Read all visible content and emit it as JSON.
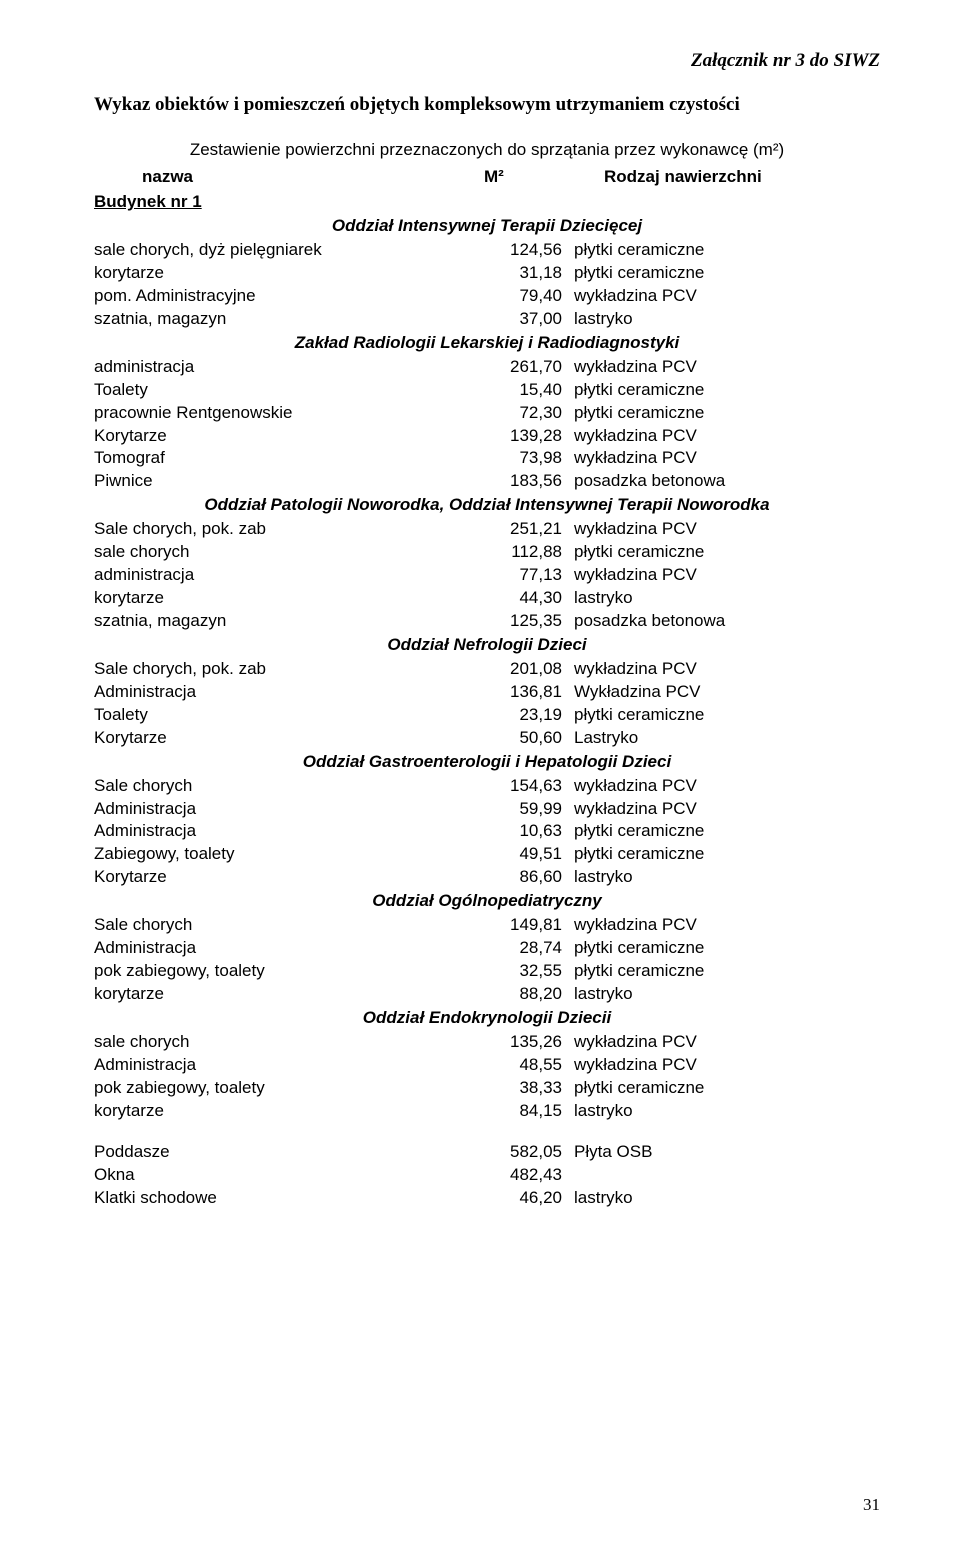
{
  "attachment_label": "Załącznik nr 3 do SIWZ",
  "doc_title": "Wykaz obiektów i pomieszczeń objętych kompleksowym utrzymaniem czystości",
  "subtitle": "Zestawienie powierzchni przeznaczonych do sprzątania przez wykonawcę (m²)",
  "headers": {
    "name": "nazwa",
    "m2": "M²",
    "surface": "Rodzaj nawierzchni"
  },
  "building_label": "Budynek nr 1",
  "sections": [
    {
      "title": "Oddział Intensywnej Terapii Dziecięcej",
      "rows": [
        {
          "name": "sale chorych, dyż pielęgniarek",
          "val": "124,56",
          "surf": "płytki ceramiczne"
        },
        {
          "name": "korytarze",
          "val": "31,18",
          "surf": "płytki ceramiczne"
        },
        {
          "name": "pom. Administracyjne",
          "val": "79,40",
          "surf": "wykładzina PCV"
        },
        {
          "name": "szatnia, magazyn",
          "val": "37,00",
          "surf": "lastryko"
        }
      ]
    },
    {
      "title": "Zakład Radiologii Lekarskiej i Radiodiagnostyki",
      "rows": [
        {
          "name": "administracja",
          "val": "261,70",
          "surf": "wykładzina PCV"
        },
        {
          "name": "Toalety",
          "val": "15,40",
          "surf": "płytki ceramiczne"
        },
        {
          "name": "pracownie Rentgenowskie",
          "val": "72,30",
          "surf": "płytki ceramiczne"
        },
        {
          "name": "Korytarze",
          "val": "139,28",
          "surf": "wykładzina PCV"
        },
        {
          "name": "Tomograf",
          "val": "73,98",
          "surf": "wykładzina PCV"
        },
        {
          "name": "Piwnice",
          "val": "183,56",
          "surf": "posadzka betonowa"
        }
      ]
    },
    {
      "title": "Oddział Patologii Noworodka, Oddział Intensywnej Terapii Noworodka",
      "rows": [
        {
          "name": "Sale chorych, pok. zab",
          "val": "251,21",
          "surf": "wykładzina PCV"
        },
        {
          "name": "sale chorych",
          "val": "112,88",
          "surf": "płytki ceramiczne"
        },
        {
          "name": "administracja",
          "val": "77,13",
          "surf": "wykładzina PCV"
        },
        {
          "name": "korytarze",
          "val": "44,30",
          "surf": "lastryko"
        },
        {
          "name": "szatnia, magazyn",
          "val": "125,35",
          "surf": "posadzka betonowa"
        }
      ]
    },
    {
      "title": "Oddział Nefrologii Dzieci",
      "rows": [
        {
          "name": "Sale chorych, pok. zab",
          "val": "201,08",
          "surf": "wykładzina PCV"
        },
        {
          "name": "Administracja",
          "val": "136,81",
          "surf": "Wykładzina PCV"
        },
        {
          "name": "Toalety",
          "val": "23,19",
          "surf": "płytki ceramiczne"
        },
        {
          "name": "Korytarze",
          "val": "50,60",
          "surf": "Lastryko"
        }
      ]
    },
    {
      "title": "Oddział Gastroenterologii i Hepatologii Dzieci",
      "rows": [
        {
          "name": "Sale chorych",
          "val": "154,63",
          "surf": "wykładzina PCV"
        },
        {
          "name": "Administracja",
          "val": "59,99",
          "surf": "wykładzina PCV"
        },
        {
          "name": "Administracja",
          "val": "10,63",
          "surf": "płytki ceramiczne"
        },
        {
          "name": "Zabiegowy, toalety",
          "val": "49,51",
          "surf": "płytki ceramiczne"
        },
        {
          "name": "Korytarze",
          "val": "86,60",
          "surf": "lastryko"
        }
      ]
    },
    {
      "title": "Oddział Ogólnopediatryczny",
      "rows": [
        {
          "name": "Sale chorych",
          "val": "149,81",
          "surf": "wykładzina PCV"
        },
        {
          "name": "Administracja",
          "val": "28,74",
          "surf": "płytki ceramiczne"
        },
        {
          "name": "pok zabiegowy, toalety",
          "val": "32,55",
          "surf": "płytki ceramiczne"
        },
        {
          "name": "korytarze",
          "val": "88,20",
          "surf": "lastryko"
        }
      ]
    },
    {
      "title": "Oddział Endokrynologii Dziecii",
      "rows": [
        {
          "name": "sale chorych",
          "val": "135,26",
          "surf": "wykładzina PCV"
        },
        {
          "name": "Administracja",
          "val": "48,55",
          "surf": "wykładzina PCV"
        },
        {
          "name": "pok zabiegowy, toalety",
          "val": "38,33",
          "surf": "płytki ceramiczne"
        },
        {
          "name": "korytarze",
          "val": "84,15",
          "surf": "lastryko"
        }
      ]
    }
  ],
  "bottom_rows": [
    {
      "name": "Poddasze",
      "val": "582,05",
      "surf": "Płyta OSB"
    },
    {
      "name": "Okna",
      "val": "482,43",
      "surf": ""
    },
    {
      "name": "Klatki schodowe",
      "val": "46,20",
      "surf": "lastryko"
    }
  ],
  "page_number": "31"
}
